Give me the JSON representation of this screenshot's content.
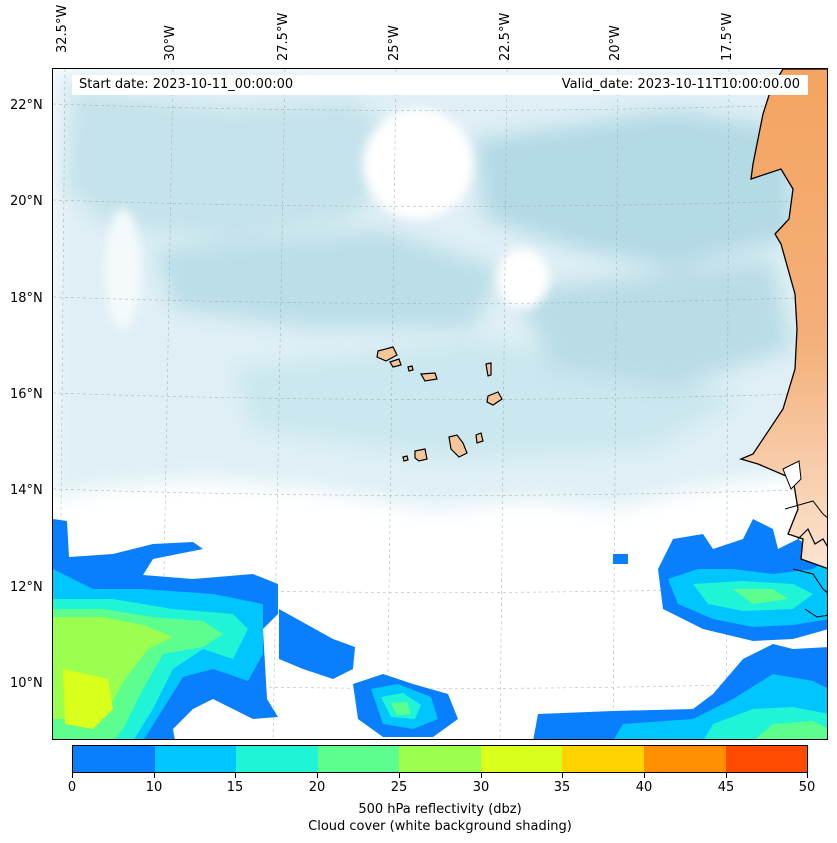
{
  "map": {
    "start_date": "Start date: 2023-10-11_00:00:00",
    "valid_date": "Valid_date: 2023-10-11T10:00:00.00",
    "lon_labels": [
      "32.5°W",
      "30°W",
      "27.5°W",
      "25°W",
      "22.5°W",
      "20°W",
      "17.5°W"
    ],
    "lat_labels": [
      "22°N",
      "20°N",
      "18°N",
      "16°N",
      "14°N",
      "12°N",
      "10°N"
    ],
    "gridlines": "dashed",
    "layers": [
      "cloud cover shading",
      "500 hPa reflectivity",
      "coastlines",
      "islands",
      "land"
    ],
    "colors": {
      "cloud": "#add8e6",
      "land_dry": "#f4a460",
      "island_fill": "#f5c69a",
      "coast": "#000000"
    }
  },
  "colorbar": {
    "ticks": [
      "0",
      "10",
      "15",
      "20",
      "25",
      "30",
      "35",
      "40",
      "45",
      "50"
    ],
    "colors": [
      "#0a7ffe",
      "#00c5ff",
      "#1ff4d6",
      "#5cff8d",
      "#9aff4f",
      "#d9ff1c",
      "#ffd200",
      "#ff8e00",
      "#ff4a00"
    ],
    "title_line1": "500 hPa reflectivity (dbz)",
    "title_line2": "Cloud cover (white background shading)"
  }
}
